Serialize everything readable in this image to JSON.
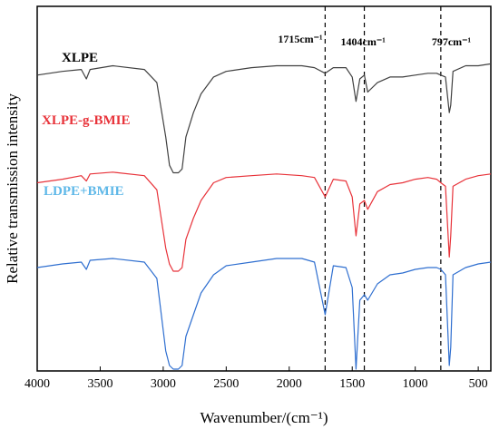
{
  "chart_data": {
    "type": "line",
    "xlabel": "Wavenumber/(cm⁻¹)",
    "ylabel": "Relative transmission intensity",
    "xlim": [
      4000,
      400
    ],
    "x_reversed": true,
    "x_ticks": [
      4000,
      3500,
      3000,
      2500,
      2000,
      1500,
      1000,
      500
    ],
    "x_tick_labels": [
      "4000",
      "3500",
      "3000",
      "2500",
      "2000",
      "1500",
      "1000",
      "500"
    ],
    "y_ticks_shown": false,
    "grid": false,
    "series": [
      {
        "name": "XLPE",
        "color": "#404040",
        "points": [
          [
            4000,
            0.88
          ],
          [
            3800,
            0.9
          ],
          [
            3650,
            0.91
          ],
          [
            3610,
            0.86
          ],
          [
            3580,
            0.91
          ],
          [
            3400,
            0.93
          ],
          [
            3150,
            0.91
          ],
          [
            3050,
            0.84
          ],
          [
            2980,
            0.55
          ],
          [
            2950,
            0.4
          ],
          [
            2920,
            0.36
          ],
          [
            2880,
            0.36
          ],
          [
            2850,
            0.38
          ],
          [
            2820,
            0.55
          ],
          [
            2760,
            0.68
          ],
          [
            2700,
            0.78
          ],
          [
            2600,
            0.87
          ],
          [
            2500,
            0.9
          ],
          [
            2300,
            0.92
          ],
          [
            2100,
            0.93
          ],
          [
            1900,
            0.93
          ],
          [
            1800,
            0.92
          ],
          [
            1715,
            0.89
          ],
          [
            1650,
            0.92
          ],
          [
            1550,
            0.92
          ],
          [
            1500,
            0.87
          ],
          [
            1470,
            0.74
          ],
          [
            1440,
            0.86
          ],
          [
            1404,
            0.88
          ],
          [
            1377,
            0.79
          ],
          [
            1300,
            0.84
          ],
          [
            1200,
            0.87
          ],
          [
            1100,
            0.87
          ],
          [
            1000,
            0.88
          ],
          [
            900,
            0.89
          ],
          [
            830,
            0.89
          ],
          [
            797,
            0.88
          ],
          [
            760,
            0.87
          ],
          [
            730,
            0.68
          ],
          [
            718,
            0.72
          ],
          [
            700,
            0.9
          ],
          [
            600,
            0.93
          ],
          [
            500,
            0.93
          ],
          [
            400,
            0.94
          ]
        ]
      },
      {
        "name": "XLPE-g-BMIE",
        "color": "#e8333a",
        "points": [
          [
            4000,
            0.7
          ],
          [
            3800,
            0.72
          ],
          [
            3650,
            0.74
          ],
          [
            3610,
            0.71
          ],
          [
            3580,
            0.75
          ],
          [
            3400,
            0.76
          ],
          [
            3150,
            0.74
          ],
          [
            3050,
            0.66
          ],
          [
            2980,
            0.33
          ],
          [
            2950,
            0.24
          ],
          [
            2920,
            0.2
          ],
          [
            2880,
            0.2
          ],
          [
            2850,
            0.22
          ],
          [
            2820,
            0.38
          ],
          [
            2760,
            0.5
          ],
          [
            2700,
            0.6
          ],
          [
            2600,
            0.7
          ],
          [
            2500,
            0.73
          ],
          [
            2300,
            0.74
          ],
          [
            2100,
            0.75
          ],
          [
            1900,
            0.74
          ],
          [
            1800,
            0.73
          ],
          [
            1715,
            0.62
          ],
          [
            1650,
            0.72
          ],
          [
            1550,
            0.71
          ],
          [
            1500,
            0.62
          ],
          [
            1470,
            0.4
          ],
          [
            1440,
            0.58
          ],
          [
            1404,
            0.6
          ],
          [
            1377,
            0.55
          ],
          [
            1300,
            0.65
          ],
          [
            1200,
            0.69
          ],
          [
            1100,
            0.7
          ],
          [
            1000,
            0.72
          ],
          [
            900,
            0.73
          ],
          [
            830,
            0.72
          ],
          [
            797,
            0.7
          ],
          [
            760,
            0.68
          ],
          [
            730,
            0.28
          ],
          [
            718,
            0.4
          ],
          [
            700,
            0.68
          ],
          [
            600,
            0.72
          ],
          [
            500,
            0.74
          ],
          [
            400,
            0.75
          ]
        ]
      },
      {
        "name": "LDPE+BMIE",
        "color": "#2f6fd0",
        "points": [
          [
            4000,
            0.56
          ],
          [
            3800,
            0.58
          ],
          [
            3650,
            0.59
          ],
          [
            3610,
            0.55
          ],
          [
            3580,
            0.6
          ],
          [
            3400,
            0.61
          ],
          [
            3150,
            0.59
          ],
          [
            3050,
            0.5
          ],
          [
            2980,
            0.1
          ],
          [
            2950,
            0.02
          ],
          [
            2920,
            0.0
          ],
          [
            2880,
            0.0
          ],
          [
            2850,
            0.02
          ],
          [
            2820,
            0.18
          ],
          [
            2760,
            0.3
          ],
          [
            2700,
            0.42
          ],
          [
            2600,
            0.52
          ],
          [
            2500,
            0.57
          ],
          [
            2300,
            0.59
          ],
          [
            2100,
            0.61
          ],
          [
            1900,
            0.61
          ],
          [
            1800,
            0.59
          ],
          [
            1715,
            0.3
          ],
          [
            1650,
            0.57
          ],
          [
            1550,
            0.56
          ],
          [
            1500,
            0.45
          ],
          [
            1470,
            0.0
          ],
          [
            1440,
            0.38
          ],
          [
            1404,
            0.41
          ],
          [
            1377,
            0.38
          ],
          [
            1300,
            0.47
          ],
          [
            1200,
            0.52
          ],
          [
            1100,
            0.53
          ],
          [
            1000,
            0.55
          ],
          [
            900,
            0.56
          ],
          [
            830,
            0.56
          ],
          [
            797,
            0.55
          ],
          [
            760,
            0.52
          ],
          [
            730,
            0.02
          ],
          [
            718,
            0.12
          ],
          [
            700,
            0.52
          ],
          [
            600,
            0.56
          ],
          [
            500,
            0.58
          ],
          [
            400,
            0.59
          ]
        ]
      }
    ],
    "reference_lines": [
      {
        "x": 1715,
        "label": "1715cm⁻¹"
      },
      {
        "x": 1404,
        "label": "1404cm⁻¹"
      },
      {
        "x": 797,
        "label": "797cm⁻¹"
      }
    ]
  }
}
